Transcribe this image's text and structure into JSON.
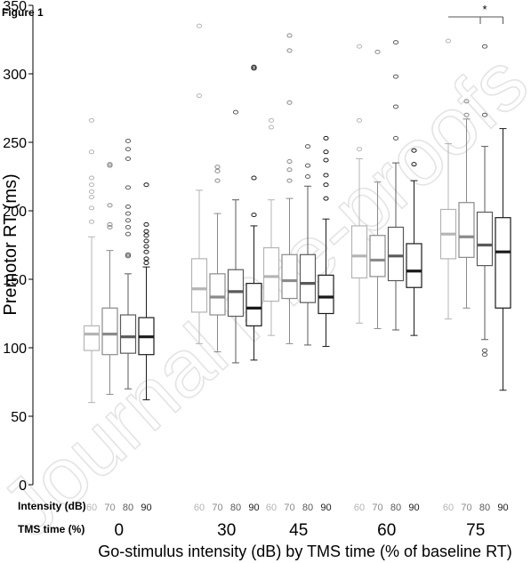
{
  "figure_label": "Figure 1",
  "watermark": "Journal Pre-proofs",
  "row_labels": {
    "intensity": "Intensity (dB)",
    "tms": "TMS time (%)"
  },
  "chart_data": {
    "type": "boxplot",
    "ylabel": "Premotor RT (ms)",
    "xlabel": "Go-stimulus intensity (dB) by TMS time (% of baseline RT)",
    "ylim": [
      0,
      350
    ],
    "yticks": [
      0,
      50,
      100,
      150,
      200,
      250,
      300,
      350
    ],
    "intensity_levels": [
      "60",
      "70",
      "80",
      "90"
    ],
    "series_colors": [
      "#b4b4b4",
      "#8a8a8a",
      "#5a5a5a",
      "#1a1a1a"
    ],
    "groups": [
      {
        "label": "0",
        "boxes": [
          {
            "intensity": "60",
            "whisker_low": 60,
            "q1": 98,
            "median": 110,
            "q3": 116,
            "whisker_high": 181,
            "outliers": [
              192,
              202,
              210,
              214,
              219,
              224,
              243,
              266
            ]
          },
          {
            "intensity": "70",
            "whisker_low": 66,
            "q1": 95,
            "median": 110,
            "q3": 129,
            "whisker_high": 171,
            "outliers": [
              188,
              190,
              204,
              233,
              234
            ]
          },
          {
            "intensity": "80",
            "whisker_low": 70,
            "q1": 96,
            "median": 108,
            "q3": 124,
            "whisker_high": 154,
            "outliers": [
              167,
              168,
              183,
              188,
              193,
              198,
              203,
              217,
              238,
              245,
              251
            ]
          },
          {
            "intensity": "90",
            "whisker_low": 62,
            "q1": 95,
            "median": 108,
            "q3": 122,
            "whisker_high": 159,
            "outliers": [
              162,
              165,
              170,
              174,
              178,
              182,
              185,
              190,
              219
            ]
          }
        ]
      },
      {
        "label": "30",
        "boxes": [
          {
            "intensity": "60",
            "whisker_low": 103,
            "q1": 126,
            "median": 143,
            "q3": 165,
            "whisker_high": 215,
            "outliers": [
              284,
              335
            ]
          },
          {
            "intensity": "70",
            "whisker_low": 97,
            "q1": 124,
            "median": 137,
            "q3": 154,
            "whisker_high": 198,
            "outliers": [
              222,
              229,
              232
            ]
          },
          {
            "intensity": "80",
            "whisker_low": 89,
            "q1": 123,
            "median": 141,
            "q3": 157,
            "whisker_high": 208,
            "outliers": [
              272
            ]
          },
          {
            "intensity": "90",
            "whisker_low": 91,
            "q1": 116,
            "median": 129,
            "q3": 147,
            "whisker_high": 189,
            "outliers": [
              197,
              224,
              304,
              305
            ]
          }
        ]
      },
      {
        "label": "45",
        "boxes": [
          {
            "intensity": "60",
            "whisker_low": 109,
            "q1": 134,
            "median": 152,
            "q3": 173,
            "whisker_high": 208,
            "outliers": [
              261,
              266
            ]
          },
          {
            "intensity": "70",
            "whisker_low": 103,
            "q1": 136,
            "median": 149,
            "q3": 168,
            "whisker_high": 209,
            "outliers": [
              222,
              230,
              236,
              279,
              317,
              328
            ]
          },
          {
            "intensity": "80",
            "whisker_low": 102,
            "q1": 133,
            "median": 147,
            "q3": 168,
            "whisker_high": 218,
            "outliers": [
              225,
              233,
              247
            ]
          },
          {
            "intensity": "90",
            "whisker_low": 101,
            "q1": 125,
            "median": 137,
            "q3": 153,
            "whisker_high": 194,
            "outliers": [
              209,
              219,
              226,
              237,
              243,
              253
            ]
          }
        ]
      },
      {
        "label": "60",
        "boxes": [
          {
            "intensity": "60",
            "whisker_low": 118,
            "q1": 151,
            "median": 167,
            "q3": 189,
            "whisker_high": 238,
            "outliers": [
              245,
              266,
              320
            ]
          },
          {
            "intensity": "70",
            "whisker_low": 114,
            "q1": 152,
            "median": 164,
            "q3": 182,
            "whisker_high": 221,
            "outliers": [
              316
            ]
          },
          {
            "intensity": "80",
            "whisker_low": 113,
            "q1": 149,
            "median": 167,
            "q3": 188,
            "whisker_high": 235,
            "outliers": [
              253,
              276,
              298,
              323
            ]
          },
          {
            "intensity": "90",
            "whisker_low": 109,
            "q1": 144,
            "median": 156,
            "q3": 176,
            "whisker_high": 222,
            "outliers": [
              234,
              244
            ]
          }
        ]
      },
      {
        "label": "75",
        "boxes": [
          {
            "intensity": "60",
            "whisker_low": 121,
            "q1": 165,
            "median": 183,
            "q3": 201,
            "whisker_high": 249,
            "outliers": [
              324
            ]
          },
          {
            "intensity": "70",
            "whisker_low": 129,
            "q1": 166,
            "median": 181,
            "q3": 206,
            "whisker_high": 267,
            "outliers": [
              270,
              280
            ]
          },
          {
            "intensity": "80",
            "whisker_low": 106,
            "q1": 160,
            "median": 175,
            "q3": 199,
            "whisker_high": 247,
            "outliers": [
              95,
              98,
              270,
              320
            ]
          },
          {
            "intensity": "90",
            "whisker_low": 69,
            "q1": 129,
            "median": 170,
            "q3": 195,
            "whisker_high": 260,
            "outliers": []
          }
        ]
      }
    ],
    "significance": {
      "label": "*",
      "group": "75",
      "from": "60",
      "to": "90"
    }
  }
}
